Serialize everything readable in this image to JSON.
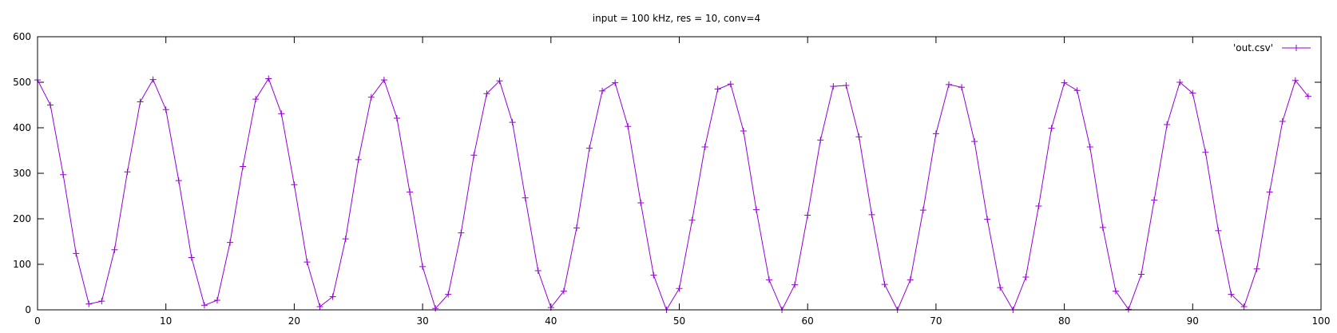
{
  "chart_data": {
    "type": "line",
    "title": "input = 100 kHz, res = 10, conv=4",
    "xlabel": "",
    "ylabel": "",
    "xlim": [
      0,
      100
    ],
    "ylim": [
      0,
      600
    ],
    "xticks": [
      0,
      10,
      20,
      30,
      40,
      50,
      60,
      70,
      80,
      90,
      100
    ],
    "yticks": [
      0,
      100,
      200,
      300,
      400,
      500,
      600
    ],
    "grid": false,
    "legend_position": "top-right",
    "series": [
      {
        "name": "'out.csv'",
        "color": "#9400d3",
        "marker": "plus",
        "x": [
          0,
          1,
          2,
          3,
          4,
          5,
          6,
          7,
          8,
          9,
          10,
          11,
          12,
          13,
          14,
          15,
          16,
          17,
          18,
          19,
          20,
          21,
          22,
          23,
          24,
          25,
          26,
          27,
          28,
          29,
          30,
          31,
          32,
          33,
          34,
          35,
          36,
          37,
          38,
          39,
          40,
          41,
          42,
          43,
          44,
          45,
          46,
          47,
          48,
          49,
          50,
          51,
          52,
          53,
          54,
          55,
          56,
          57,
          58,
          59,
          60,
          61,
          62,
          63,
          64,
          65,
          66,
          67,
          68,
          69,
          70,
          71,
          72,
          73,
          74,
          75,
          76,
          77,
          78,
          79,
          80,
          81,
          82,
          83,
          84,
          85,
          86,
          87,
          88,
          89,
          90,
          91,
          92,
          93,
          94,
          95,
          96,
          97,
          98,
          99
        ],
        "values": [
          505,
          450,
          297,
          124,
          13,
          19,
          132,
          303,
          457,
          506,
          440,
          284,
          115,
          10,
          21,
          148,
          315,
          463,
          508,
          431,
          275,
          105,
          7,
          29,
          156,
          330,
          467,
          505,
          421,
          259,
          95,
          3,
          34,
          169,
          340,
          475,
          503,
          412,
          246,
          86,
          5,
          41,
          180,
          355,
          481,
          499,
          403,
          235,
          76,
          0,
          47,
          197,
          358,
          485,
          496,
          393,
          220,
          66,
          0,
          55,
          208,
          373,
          491,
          493,
          380,
          209,
          56,
          0,
          66,
          219,
          387,
          495,
          489,
          370,
          199,
          49,
          0,
          72,
          228,
          399,
          499,
          482,
          358,
          181,
          41,
          1,
          78,
          241,
          407,
          500,
          476,
          346,
          174,
          34,
          7,
          90,
          259,
          414,
          504,
          469
        ]
      }
    ]
  }
}
